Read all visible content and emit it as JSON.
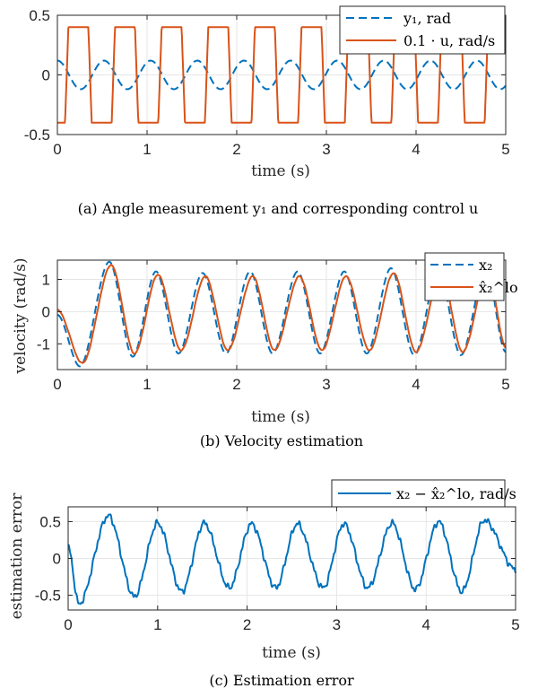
{
  "chart_data": [
    {
      "type": "line",
      "xlabel": "time (s)",
      "caption": "(a) Angle measurement y₁ and corresponding control u",
      "xlim": [
        0,
        5
      ],
      "ylim": [
        -0.5,
        0.5
      ],
      "xticks": [
        "0",
        "1",
        "2",
        "3",
        "4",
        "5"
      ],
      "yticks": [
        "0.5",
        "0",
        "-0.5"
      ],
      "grid": true,
      "legend_position": "top-right",
      "colors": {
        "series1": "#0072BD",
        "series2": "#D95319"
      },
      "series": [
        {
          "name": "y₁, rad",
          "style": "dashed",
          "kind": "sine",
          "amplitude": 0.12,
          "period": 0.52,
          "phase_value_at_0": 0.19,
          "x_range": [
            0,
            5
          ]
        },
        {
          "name": "0.1 · u, rad/s",
          "style": "solid",
          "kind": "saturated-square",
          "levels": [
            -0.4,
            0.4
          ],
          "period": 0.52,
          "x_range": [
            0,
            5
          ]
        }
      ]
    },
    {
      "type": "line",
      "xlabel": "time (s)",
      "ylabel": "velocity (rad/s)",
      "caption": "(b) Velocity estimation",
      "xlim": [
        0,
        5
      ],
      "ylim": [
        -1.8,
        1.6
      ],
      "xticks": [
        "0",
        "1",
        "2",
        "3",
        "4",
        "5"
      ],
      "yticks": [
        "1",
        "0",
        "-1"
      ],
      "grid": true,
      "legend_position": "top-right",
      "colors": {
        "series1": "#0072BD",
        "series2": "#D95319"
      },
      "series": [
        {
          "name": "x₂",
          "style": "dashed",
          "kind": "oscillation",
          "amplitude": 1.35,
          "period": 0.52,
          "peaks": [
            [
              0.58,
              1.55
            ],
            [
              1.1,
              1.25
            ],
            [
              1.62,
              1.2
            ],
            [
              2.15,
              1.25
            ],
            [
              2.68,
              1.25
            ],
            [
              3.2,
              1.25
            ],
            [
              3.72,
              1.35
            ],
            [
              4.25,
              1.3
            ],
            [
              4.78,
              1.35
            ]
          ],
          "troughs": [
            [
              0.25,
              -1.7
            ],
            [
              0.84,
              -1.4
            ],
            [
              1.35,
              -1.3
            ],
            [
              1.88,
              -1.3
            ],
            [
              2.4,
              -1.3
            ],
            [
              2.93,
              -1.3
            ],
            [
              3.45,
              -1.3
            ],
            [
              3.98,
              -1.35
            ],
            [
              4.5,
              -1.35
            ]
          ]
        },
        {
          "name": "x̂₂^lo",
          "style": "solid",
          "kind": "oscillation",
          "amplitude": 1.25,
          "period": 0.52,
          "peaks": [
            [
              0.6,
              1.45
            ],
            [
              1.12,
              1.15
            ],
            [
              1.65,
              1.1
            ],
            [
              2.18,
              1.1
            ],
            [
              2.7,
              1.1
            ],
            [
              3.22,
              1.1
            ],
            [
              3.75,
              1.2
            ],
            [
              4.28,
              1.2
            ],
            [
              4.8,
              1.25
            ]
          ],
          "troughs": [
            [
              0.28,
              -1.6
            ],
            [
              0.86,
              -1.3
            ],
            [
              1.38,
              -1.2
            ],
            [
              1.9,
              -1.2
            ],
            [
              2.42,
              -1.2
            ],
            [
              2.95,
              -1.2
            ],
            [
              3.48,
              -1.2
            ],
            [
              4.0,
              -1.25
            ],
            [
              4.52,
              -1.25
            ]
          ]
        }
      ]
    },
    {
      "type": "line",
      "xlabel": "time (s)",
      "ylabel": "estimation error",
      "caption": "(c) Estimation error",
      "xlim": [
        0,
        5
      ],
      "ylim": [
        -0.7,
        0.7
      ],
      "xticks": [
        "0",
        "1",
        "2",
        "3",
        "4",
        "5"
      ],
      "yticks": [
        "0.5",
        "0",
        "-0.5"
      ],
      "grid": true,
      "legend_position": "top-right",
      "colors": {
        "series1": "#0072BD"
      },
      "series": [
        {
          "name": "x₂ − x̂₂^lo, rad/s",
          "style": "solid",
          "kind": "oscillation",
          "period": 0.52,
          "peaks": [
            [
              0.45,
              0.58
            ],
            [
              1.0,
              0.48
            ],
            [
              1.52,
              0.48
            ],
            [
              2.05,
              0.47
            ],
            [
              2.56,
              0.47
            ],
            [
              3.08,
              0.47
            ],
            [
              3.62,
              0.48
            ],
            [
              4.14,
              0.5
            ],
            [
              4.65,
              0.52
            ]
          ],
          "troughs": [
            [
              0.12,
              -0.62
            ],
            [
              0.74,
              -0.52
            ],
            [
              1.27,
              -0.45
            ],
            [
              1.8,
              -0.4
            ],
            [
              2.32,
              -0.4
            ],
            [
              2.85,
              -0.4
            ],
            [
              3.35,
              -0.4
            ],
            [
              3.88,
              -0.42
            ],
            [
              4.4,
              -0.45
            ]
          ]
        }
      ]
    }
  ]
}
